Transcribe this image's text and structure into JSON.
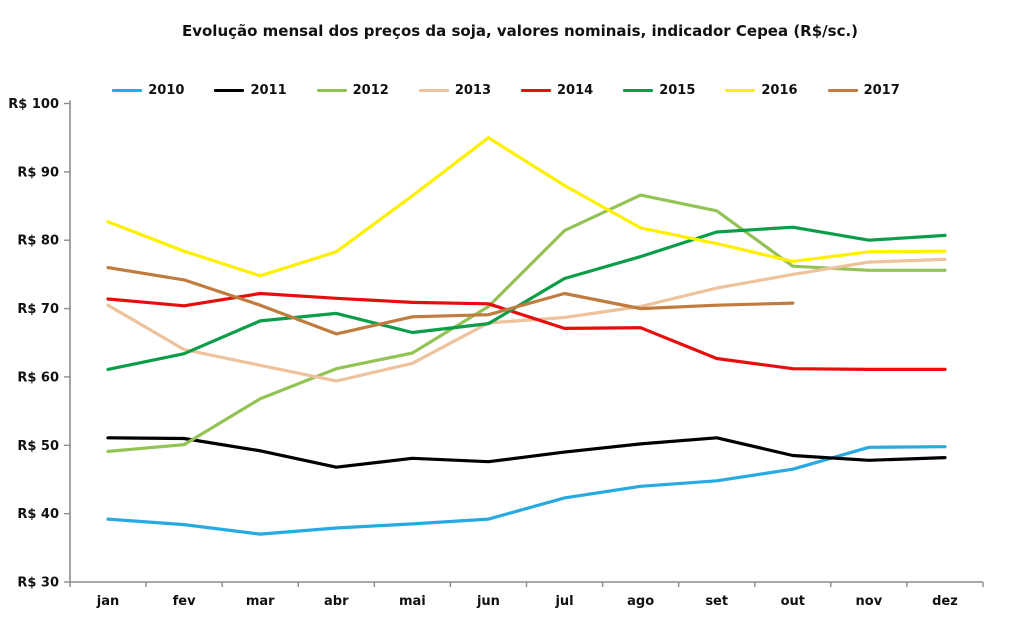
{
  "title": "Evolução mensal dos preços da soja, valores nominais, indicador Cepea (R$/sc.)",
  "chart_data": {
    "type": "line",
    "title": "Evolução mensal dos preços da soja, valores nominais, indicador Cepea (R$/sc.)",
    "categories": [
      "jan",
      "fev",
      "mar",
      "abr",
      "mai",
      "jun",
      "jul",
      "ago",
      "set",
      "out",
      "nov",
      "dez"
    ],
    "y_axis": {
      "min": 30,
      "max": 100,
      "step": 10,
      "tick_prefix": "R$ ",
      "tick_labels_top_down": [
        "R$ 100",
        "R$ 90",
        "R$ 80",
        "R$ 70",
        "R$ 60",
        "R$ 50",
        "R$ 40",
        "R$ 30"
      ]
    },
    "grid": false,
    "legend_position": "top",
    "axis_color": "#8c8c8c",
    "series": [
      {
        "name": "2010",
        "color": "#27A9E1",
        "values": [
          39.2,
          38.4,
          37.0,
          37.9,
          38.5,
          39.2,
          42.3,
          44.0,
          44.8,
          46.5,
          49.7,
          49.8
        ]
      },
      {
        "name": "2011",
        "color": "#000000",
        "values": [
          51.1,
          51.0,
          49.2,
          46.8,
          48.1,
          47.6,
          49.0,
          50.2,
          51.1,
          48.5,
          47.8,
          48.2
        ]
      },
      {
        "name": "2012",
        "color": "#94C355",
        "values": [
          49.1,
          50.1,
          56.8,
          61.2,
          63.5,
          70.3,
          81.4,
          86.6,
          84.3,
          76.2,
          75.6,
          75.6
        ]
      },
      {
        "name": "2013",
        "color": "#EDC29D",
        "values": [
          70.5,
          64.0,
          61.7,
          59.4,
          62.0,
          67.9,
          68.7,
          70.3,
          73.0,
          75.0,
          76.8,
          77.2
        ]
      },
      {
        "name": "2014",
        "color": "#E60D0D",
        "values": [
          71.4,
          70.4,
          72.2,
          71.5,
          70.9,
          70.7,
          67.1,
          67.2,
          62.7,
          61.2,
          61.1,
          61.1
        ]
      },
      {
        "name": "2015",
        "color": "#0C9D49",
        "values": [
          61.1,
          63.4,
          68.2,
          69.3,
          66.5,
          67.8,
          74.4,
          77.6,
          81.2,
          81.9,
          80.0,
          80.7
        ]
      },
      {
        "name": "2016",
        "color": "#FDF000",
        "values": [
          82.7,
          78.4,
          74.8,
          78.3,
          86.5,
          95.0,
          88.0,
          81.8,
          79.5,
          76.9,
          78.3,
          78.4
        ]
      },
      {
        "name": "2017",
        "color": "#C07B3E",
        "values": [
          76.0,
          74.2,
          70.5,
          66.3,
          68.8,
          69.1,
          72.2,
          70.0,
          70.5,
          70.8,
          null,
          null
        ]
      }
    ]
  }
}
